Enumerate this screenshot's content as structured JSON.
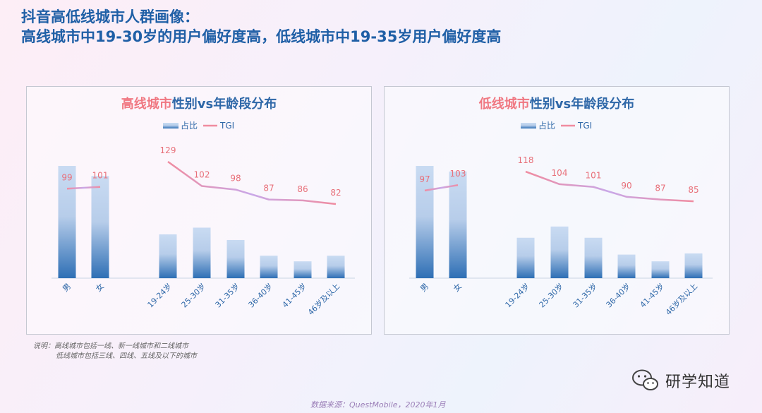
{
  "title": {
    "line1": "抖音高低线城市人群画像：",
    "line2": "高线城市中19-30岁的用户偏好度高，低线城市中19-35岁用户偏好度高"
  },
  "colors": {
    "title": "#1f5fa6",
    "highlight": "#f07882",
    "axis_text": "#2f68a8",
    "bar_top": "#c9dbf2",
    "bar_bottom": "#2e6fb5",
    "tgi_pink": "#f08ca0",
    "tgi_purple": "#c9a8e8",
    "tgi_label": "#e8707a"
  },
  "chart_data": [
    {
      "type": "bar",
      "title_highlight": "高线城市",
      "title_rest": "性别vs年龄段分布",
      "legend": {
        "bar": "占比",
        "line": "TGI",
        "placement": "top-center"
      },
      "categories": [
        "男",
        "女",
        "19-24岁",
        "25-30岁",
        "31-35岁",
        "36-40岁",
        "41-45岁",
        "46岁及以上"
      ],
      "series": [
        {
          "name": "占比",
          "type": "bar",
          "values": [
            100,
            91,
            39,
            45,
            34,
            20,
            15,
            20
          ]
        },
        {
          "name": "TGI",
          "type": "line",
          "values": [
            99,
            101,
            129,
            102,
            98,
            87,
            86,
            82
          ]
        }
      ]
    },
    {
      "type": "bar",
      "title_highlight": "低线城市",
      "title_rest": "性别vs年龄段分布",
      "legend": {
        "bar": "占比",
        "line": "TGI",
        "placement": "top-center"
      },
      "categories": [
        "男",
        "女",
        "19-24岁",
        "25-30岁",
        "31-35岁",
        "36-40岁",
        "41-45岁",
        "46岁及以上"
      ],
      "series": [
        {
          "name": "占比",
          "type": "bar",
          "values": [
            100,
            95,
            36,
            46,
            36,
            21,
            15,
            22
          ]
        },
        {
          "name": "TGI",
          "type": "line",
          "values": [
            97,
            103,
            118,
            104,
            101,
            90,
            87,
            85
          ]
        }
      ]
    }
  ],
  "note": {
    "line1": "说明：高线城市包括一线、新一线城市和二线城市",
    "line2": "低线城市包括三线、四线、五线及以下的城市"
  },
  "source": "数据来源：QuestMobile，2020年1月",
  "brand": {
    "icon": "wechat-icon",
    "text": "研学知道"
  }
}
